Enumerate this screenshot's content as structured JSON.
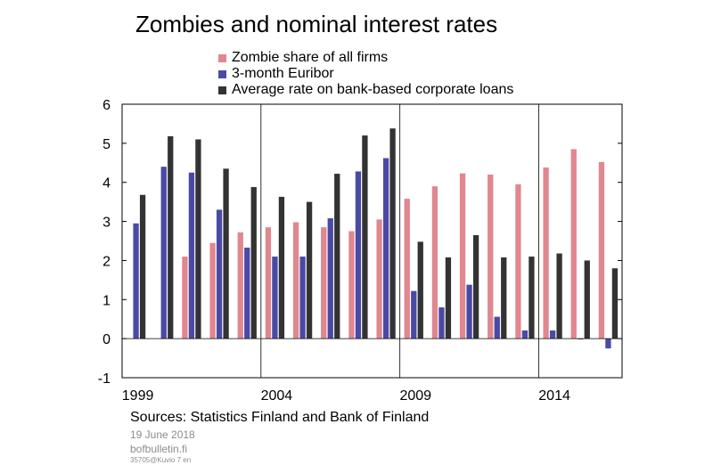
{
  "title": "Zombies and nominal interest rates",
  "footer": {
    "source": "Sources: Statistics Finland and Bank of Finland",
    "date": "19 June 2018",
    "site": "bofbulletin.fi",
    "code": "35705@Kuvio 7 en"
  },
  "colors": {
    "zombie": "#e0878f",
    "euribor": "#4a4aa6",
    "loans": "#333333"
  },
  "chart_data": {
    "type": "bar",
    "title": "Zombies and nominal interest rates",
    "categories": [
      "1999",
      "2000",
      "2001",
      "2002",
      "2003",
      "2004",
      "2005",
      "2006",
      "2007",
      "2008",
      "2009",
      "2010",
      "2011",
      "2012",
      "2013",
      "2014",
      "2015",
      "2016"
    ],
    "x_tick_labels": [
      "1999",
      "2004",
      "2009",
      "2014"
    ],
    "y_ticks": [
      "6",
      "5",
      "4",
      "3",
      "2",
      "1",
      "0",
      "-1"
    ],
    "ylim": [
      -1,
      6
    ],
    "grid": "vertical lines at 2004, 2009, 2014",
    "legend_position": "top",
    "series": [
      {
        "name": "Zombie share of all firms",
        "values": [
          null,
          null,
          2.1,
          2.45,
          2.72,
          2.85,
          2.98,
          2.85,
          2.75,
          3.05,
          3.58,
          3.9,
          4.23,
          4.2,
          3.95,
          4.38,
          4.85,
          4.52
        ]
      },
      {
        "name": "3-month Euribor",
        "values": [
          2.95,
          4.4,
          4.25,
          3.3,
          2.33,
          2.1,
          2.1,
          3.08,
          4.28,
          4.62,
          1.22,
          0.8,
          1.38,
          0.56,
          0.21,
          0.21,
          -0.02,
          -0.25
        ]
      },
      {
        "name": "Average rate on bank-based corporate loans",
        "values": [
          3.68,
          5.18,
          5.1,
          4.35,
          3.88,
          3.63,
          3.5,
          4.22,
          5.2,
          5.38,
          2.48,
          2.08,
          2.65,
          2.08,
          2.1,
          2.18,
          2.0,
          1.8
        ]
      }
    ]
  }
}
